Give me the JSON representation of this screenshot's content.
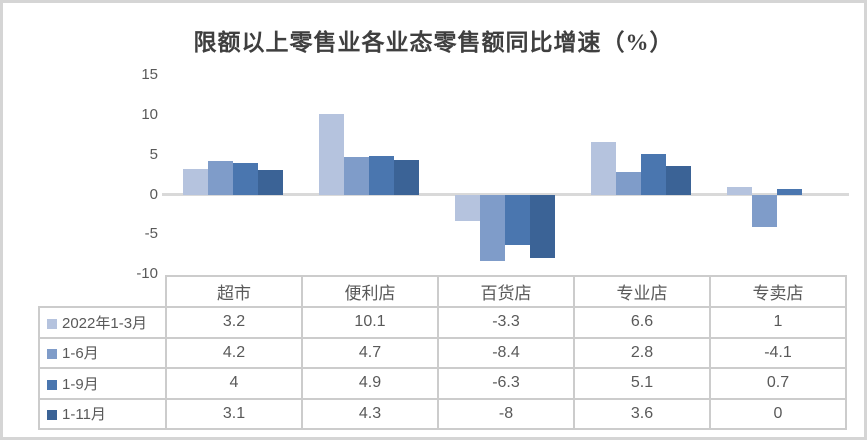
{
  "chart_data": {
    "type": "bar",
    "title": "限额以上零售业各业态零售额同比增速（%）",
    "categories": [
      "超市",
      "便利店",
      "百货店",
      "专业店",
      "专卖店"
    ],
    "series": [
      {
        "name": "2022年1-3月",
        "color": "#b5c3de",
        "values": [
          3.2,
          10.1,
          -3.3,
          6.6,
          1
        ]
      },
      {
        "name": "1-6月",
        "color": "#7f9cc9",
        "values": [
          4.2,
          4.7,
          -8.4,
          2.8,
          -4.1
        ]
      },
      {
        "name": "1-9月",
        "color": "#4a76af",
        "values": [
          4,
          4.9,
          -6.3,
          5.1,
          0.7
        ]
      },
      {
        "name": "1-11月",
        "color": "#3b6396",
        "values": [
          3.1,
          4.3,
          -8,
          3.6,
          0
        ]
      }
    ],
    "y_axis": {
      "min": -10,
      "max": 15,
      "ticks": [
        15,
        10,
        5,
        0,
        -5,
        -10
      ]
    },
    "grid": false,
    "legend_position": "data-table-keys"
  },
  "colors": {
    "axis_line": "#d9d9d9",
    "table_border": "#cccccc",
    "tick_text": "#595959",
    "title_text": "#3f3f3f",
    "frame_border": "#d5d5d5",
    "background": "#ffffff"
  }
}
